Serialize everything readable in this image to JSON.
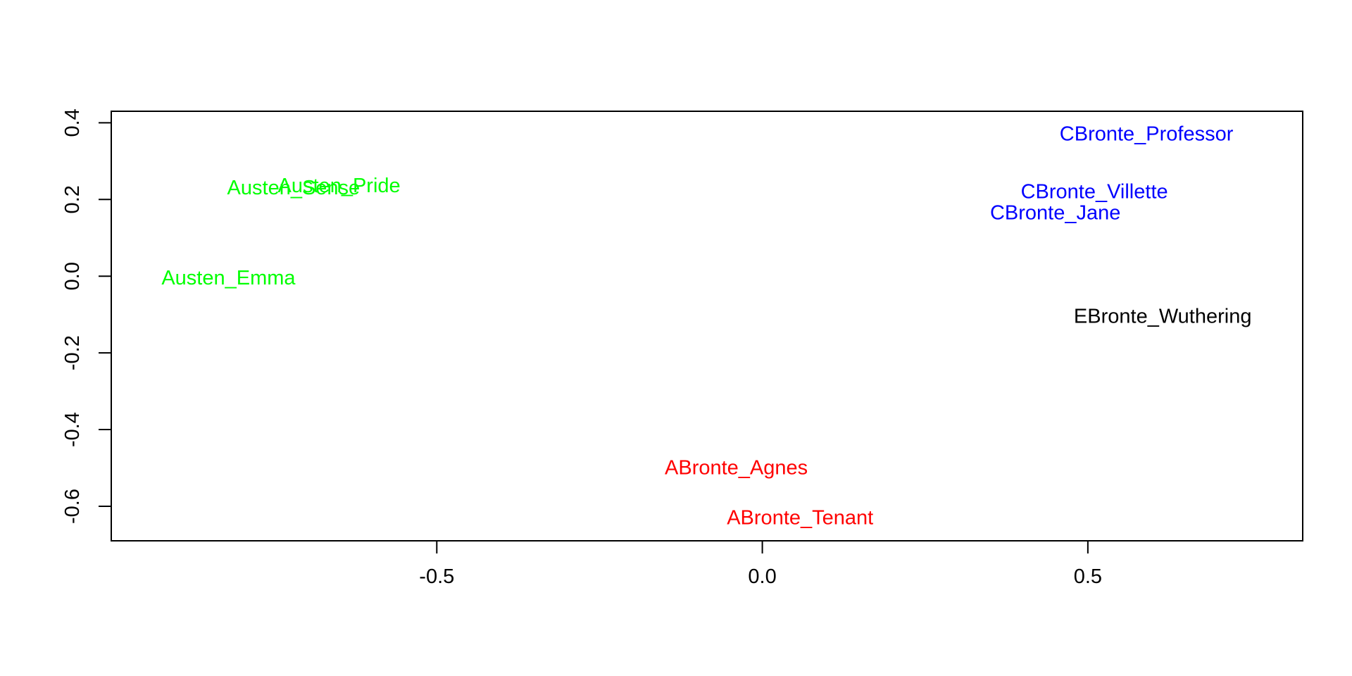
{
  "chart_data": {
    "type": "scatter",
    "title": "",
    "xlabel": "",
    "ylabel": "",
    "xlim": [
      -1.0,
      0.83
    ],
    "ylim": [
      -0.69,
      0.43
    ],
    "x_ticks": [
      {
        "value": -0.5,
        "label": "-0.5"
      },
      {
        "value": 0.0,
        "label": "0.0"
      },
      {
        "value": 0.5,
        "label": "0.5"
      }
    ],
    "y_ticks": [
      {
        "value": 0.4,
        "label": "0.4"
      },
      {
        "value": 0.2,
        "label": "0.2"
      },
      {
        "value": 0.0,
        "label": "0.0"
      },
      {
        "value": -0.2,
        "label": "-0.2"
      },
      {
        "value": -0.4,
        "label": "-0.4"
      },
      {
        "value": -0.6,
        "label": "-0.6"
      }
    ],
    "grid": false,
    "legend": "none",
    "points": [
      {
        "label": "CBronte_Professor",
        "x": 0.59,
        "y": 0.37,
        "color": "#0000ff"
      },
      {
        "label": "CBronte_Villette",
        "x": 0.51,
        "y": 0.22,
        "color": "#0000ff"
      },
      {
        "label": "CBronte_Jane",
        "x": 0.45,
        "y": 0.165,
        "color": "#0000ff"
      },
      {
        "label": "EBronte_Wuthering",
        "x": 0.615,
        "y": -0.105,
        "color": "#000000"
      },
      {
        "label": "Austen_Pride",
        "x": -0.65,
        "y": 0.235,
        "color": "#00ff00"
      },
      {
        "label": "Austen_Sense",
        "x": -0.72,
        "y": 0.23,
        "color": "#00ff00"
      },
      {
        "label": "Austen_Emma",
        "x": -0.82,
        "y": -0.005,
        "color": "#00ff00"
      },
      {
        "label": "ABronte_Agnes",
        "x": -0.04,
        "y": -0.5,
        "color": "#ff0000"
      },
      {
        "label": "ABronte_Tenant",
        "x": 0.058,
        "y": -0.63,
        "color": "#ff0000"
      }
    ]
  }
}
